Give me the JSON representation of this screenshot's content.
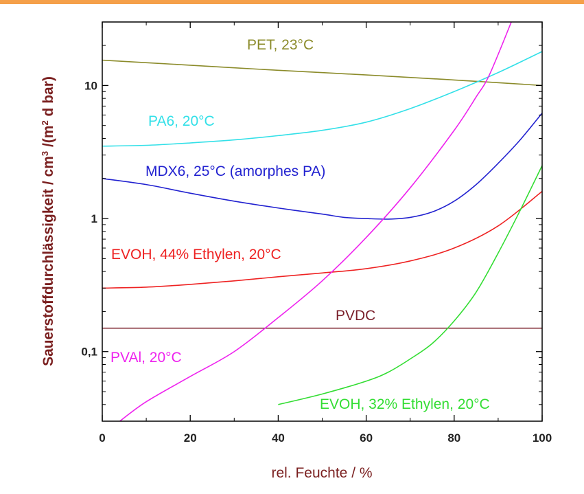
{
  "chart_data": {
    "type": "line",
    "xlabel": "rel. Feuchte / %",
    "ylabel_main": "Sauerstoffdurchlässigkeit / cm",
    "ylabel_sup": "3",
    "ylabel_mid": " /(m",
    "ylabel_sup2": "2",
    "ylabel_end": " d bar)",
    "x_scale": "linear",
    "y_scale": "log",
    "xlim": [
      0,
      100
    ],
    "ylim": [
      0.03,
      30
    ],
    "x_ticks": [
      0,
      20,
      40,
      60,
      80,
      100
    ],
    "x_tick_labels": [
      "0",
      "20",
      "40",
      "60",
      "80",
      "100"
    ],
    "y_ticks": [
      0.1,
      1,
      10
    ],
    "y_tick_labels": [
      "0,1",
      "1",
      "10"
    ],
    "grid": false,
    "colors": {
      "axis_title": "#7a1f1f",
      "top_border": "#f5a04a"
    },
    "series": [
      {
        "name": "PET, 23°C",
        "color": "#8b8b2a",
        "x": [
          0,
          20,
          40,
          60,
          80,
          100
        ],
        "y": [
          15.5,
          14.2,
          13.0,
          12.0,
          11.0,
          10.0
        ]
      },
      {
        "name": "PA6, 20°C",
        "color": "#33e0e8",
        "x": [
          0,
          10,
          20,
          30,
          40,
          50,
          60,
          70,
          80,
          90,
          100
        ],
        "y": [
          3.5,
          3.55,
          3.7,
          3.9,
          4.2,
          4.6,
          5.3,
          6.7,
          9.0,
          12.5,
          18.0
        ]
      },
      {
        "name": "MDX6, 25°C (amorphes PA)",
        "color": "#2222d0",
        "x": [
          0,
          10,
          20,
          30,
          40,
          50,
          55,
          60,
          65,
          70,
          75,
          80,
          85,
          90,
          95,
          100
        ],
        "y": [
          2.0,
          1.8,
          1.55,
          1.35,
          1.2,
          1.08,
          1.02,
          1.0,
          0.99,
          1.02,
          1.12,
          1.35,
          1.8,
          2.6,
          3.9,
          6.2
        ]
      },
      {
        "name": "EVOH, 44% Ethylen, 20°C",
        "color": "#ee2222",
        "x": [
          0,
          10,
          20,
          30,
          40,
          50,
          60,
          70,
          80,
          90,
          100
        ],
        "y": [
          0.3,
          0.305,
          0.32,
          0.34,
          0.365,
          0.39,
          0.42,
          0.48,
          0.6,
          0.88,
          1.6
        ]
      },
      {
        "name": "PVDC",
        "color": "#7a1f2a",
        "x": [
          0,
          100
        ],
        "y": [
          0.15,
          0.15
        ]
      },
      {
        "name": "PVAl, 20°C",
        "color": "#ee22ee",
        "x": [
          4,
          10,
          20,
          30,
          40,
          50,
          60,
          70,
          80,
          85,
          88,
          93
        ],
        "y": [
          0.03,
          0.042,
          0.065,
          0.1,
          0.18,
          0.34,
          0.72,
          1.7,
          4.6,
          8.2,
          12.0,
          30.0
        ]
      },
      {
        "name": "EVOH, 32% Ethylen, 20°C",
        "color": "#33dd33",
        "x": [
          40,
          50,
          60,
          65,
          70,
          75,
          80,
          85,
          90,
          95,
          100
        ],
        "y": [
          0.04,
          0.048,
          0.06,
          0.07,
          0.088,
          0.115,
          0.17,
          0.28,
          0.55,
          1.15,
          2.5
        ]
      }
    ]
  }
}
